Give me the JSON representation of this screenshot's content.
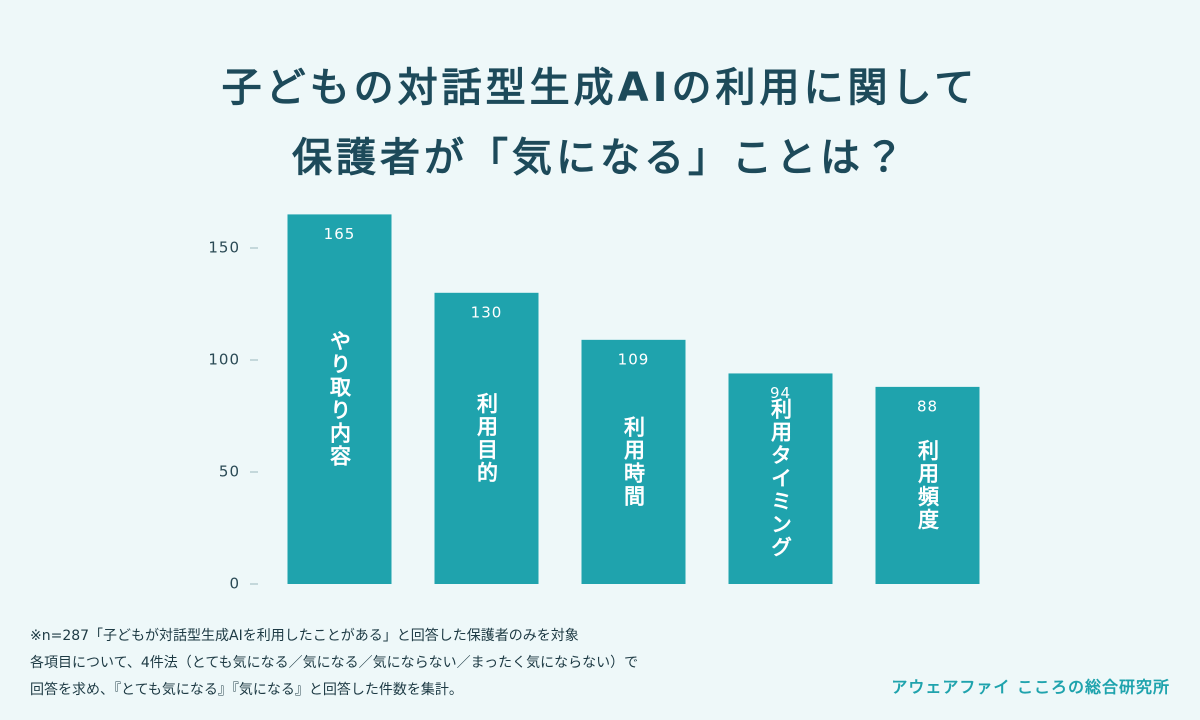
{
  "chart_data": {
    "type": "bar",
    "title": [
      "子どもの対話型生成AIの利用に関して",
      "保護者が「気になる」ことは？"
    ],
    "categories": [
      "やり取り内容",
      "利用目的",
      "利用時間",
      "利用タイミング",
      "利用頻度"
    ],
    "values": [
      165,
      130,
      109,
      94,
      88
    ],
    "color": "#1fa3ad",
    "ylim": [
      0,
      170
    ],
    "yticks": [
      0,
      50,
      100,
      150
    ],
    "grid": false,
    "notes": [
      "※n=287「子どもが対話型生成AIを利用したことがある」と回答した保護者のみを対象",
      "各項目について、4件法（とても気になる／気になる／気にならない／まったく気にならない）で",
      "回答を求め、『とても気になる』『気になる』と回答した件数を集計。"
    ],
    "source": "アウェアファイ こころの総合研究所"
  }
}
